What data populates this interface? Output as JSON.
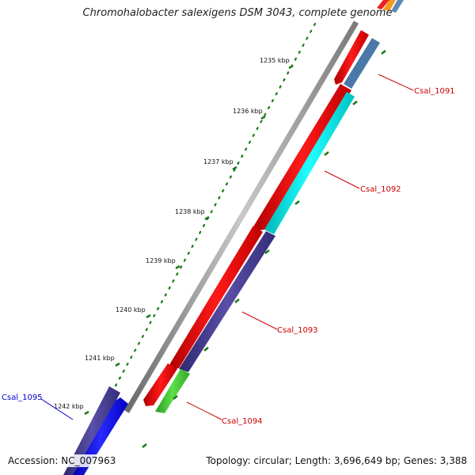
{
  "title": "Chromohalobacter salexigens DSM 3043, complete genome",
  "accession_text": "Accession: NC_007963",
  "summary_text": "Topology: circular; Length: 3,696,649 bp; Genes: 3,388",
  "ruler": {
    "ticks": [
      "1235 kbp",
      "1236 kbp",
      "1237 kbp",
      "1238 kbp",
      "1239 kbp",
      "1240 kbp",
      "1241 kbp",
      "1242 kbp"
    ]
  },
  "genes": [
    {
      "name": "Csal_1091",
      "label_color": "#cc0000"
    },
    {
      "name": "Csal_1092",
      "label_color": "#cc0000"
    },
    {
      "name": "Csal_1093",
      "label_color": "#cc0000"
    },
    {
      "name": "Csal_1094",
      "label_color": "#cc0000"
    },
    {
      "name": "Csal_1095",
      "label_color": "#0000cc"
    }
  ],
  "colors": {
    "backbone": "#8c8c8c",
    "red_feature": "#ee0000",
    "cyan_feature": "#00e8e8",
    "purple_feature": "#4a3f8f",
    "green_feature": "#44cc33",
    "blue_feature": "#0000ee",
    "steel_feature": "#4a78a8",
    "tick_dots": "#1a7a1a"
  }
}
